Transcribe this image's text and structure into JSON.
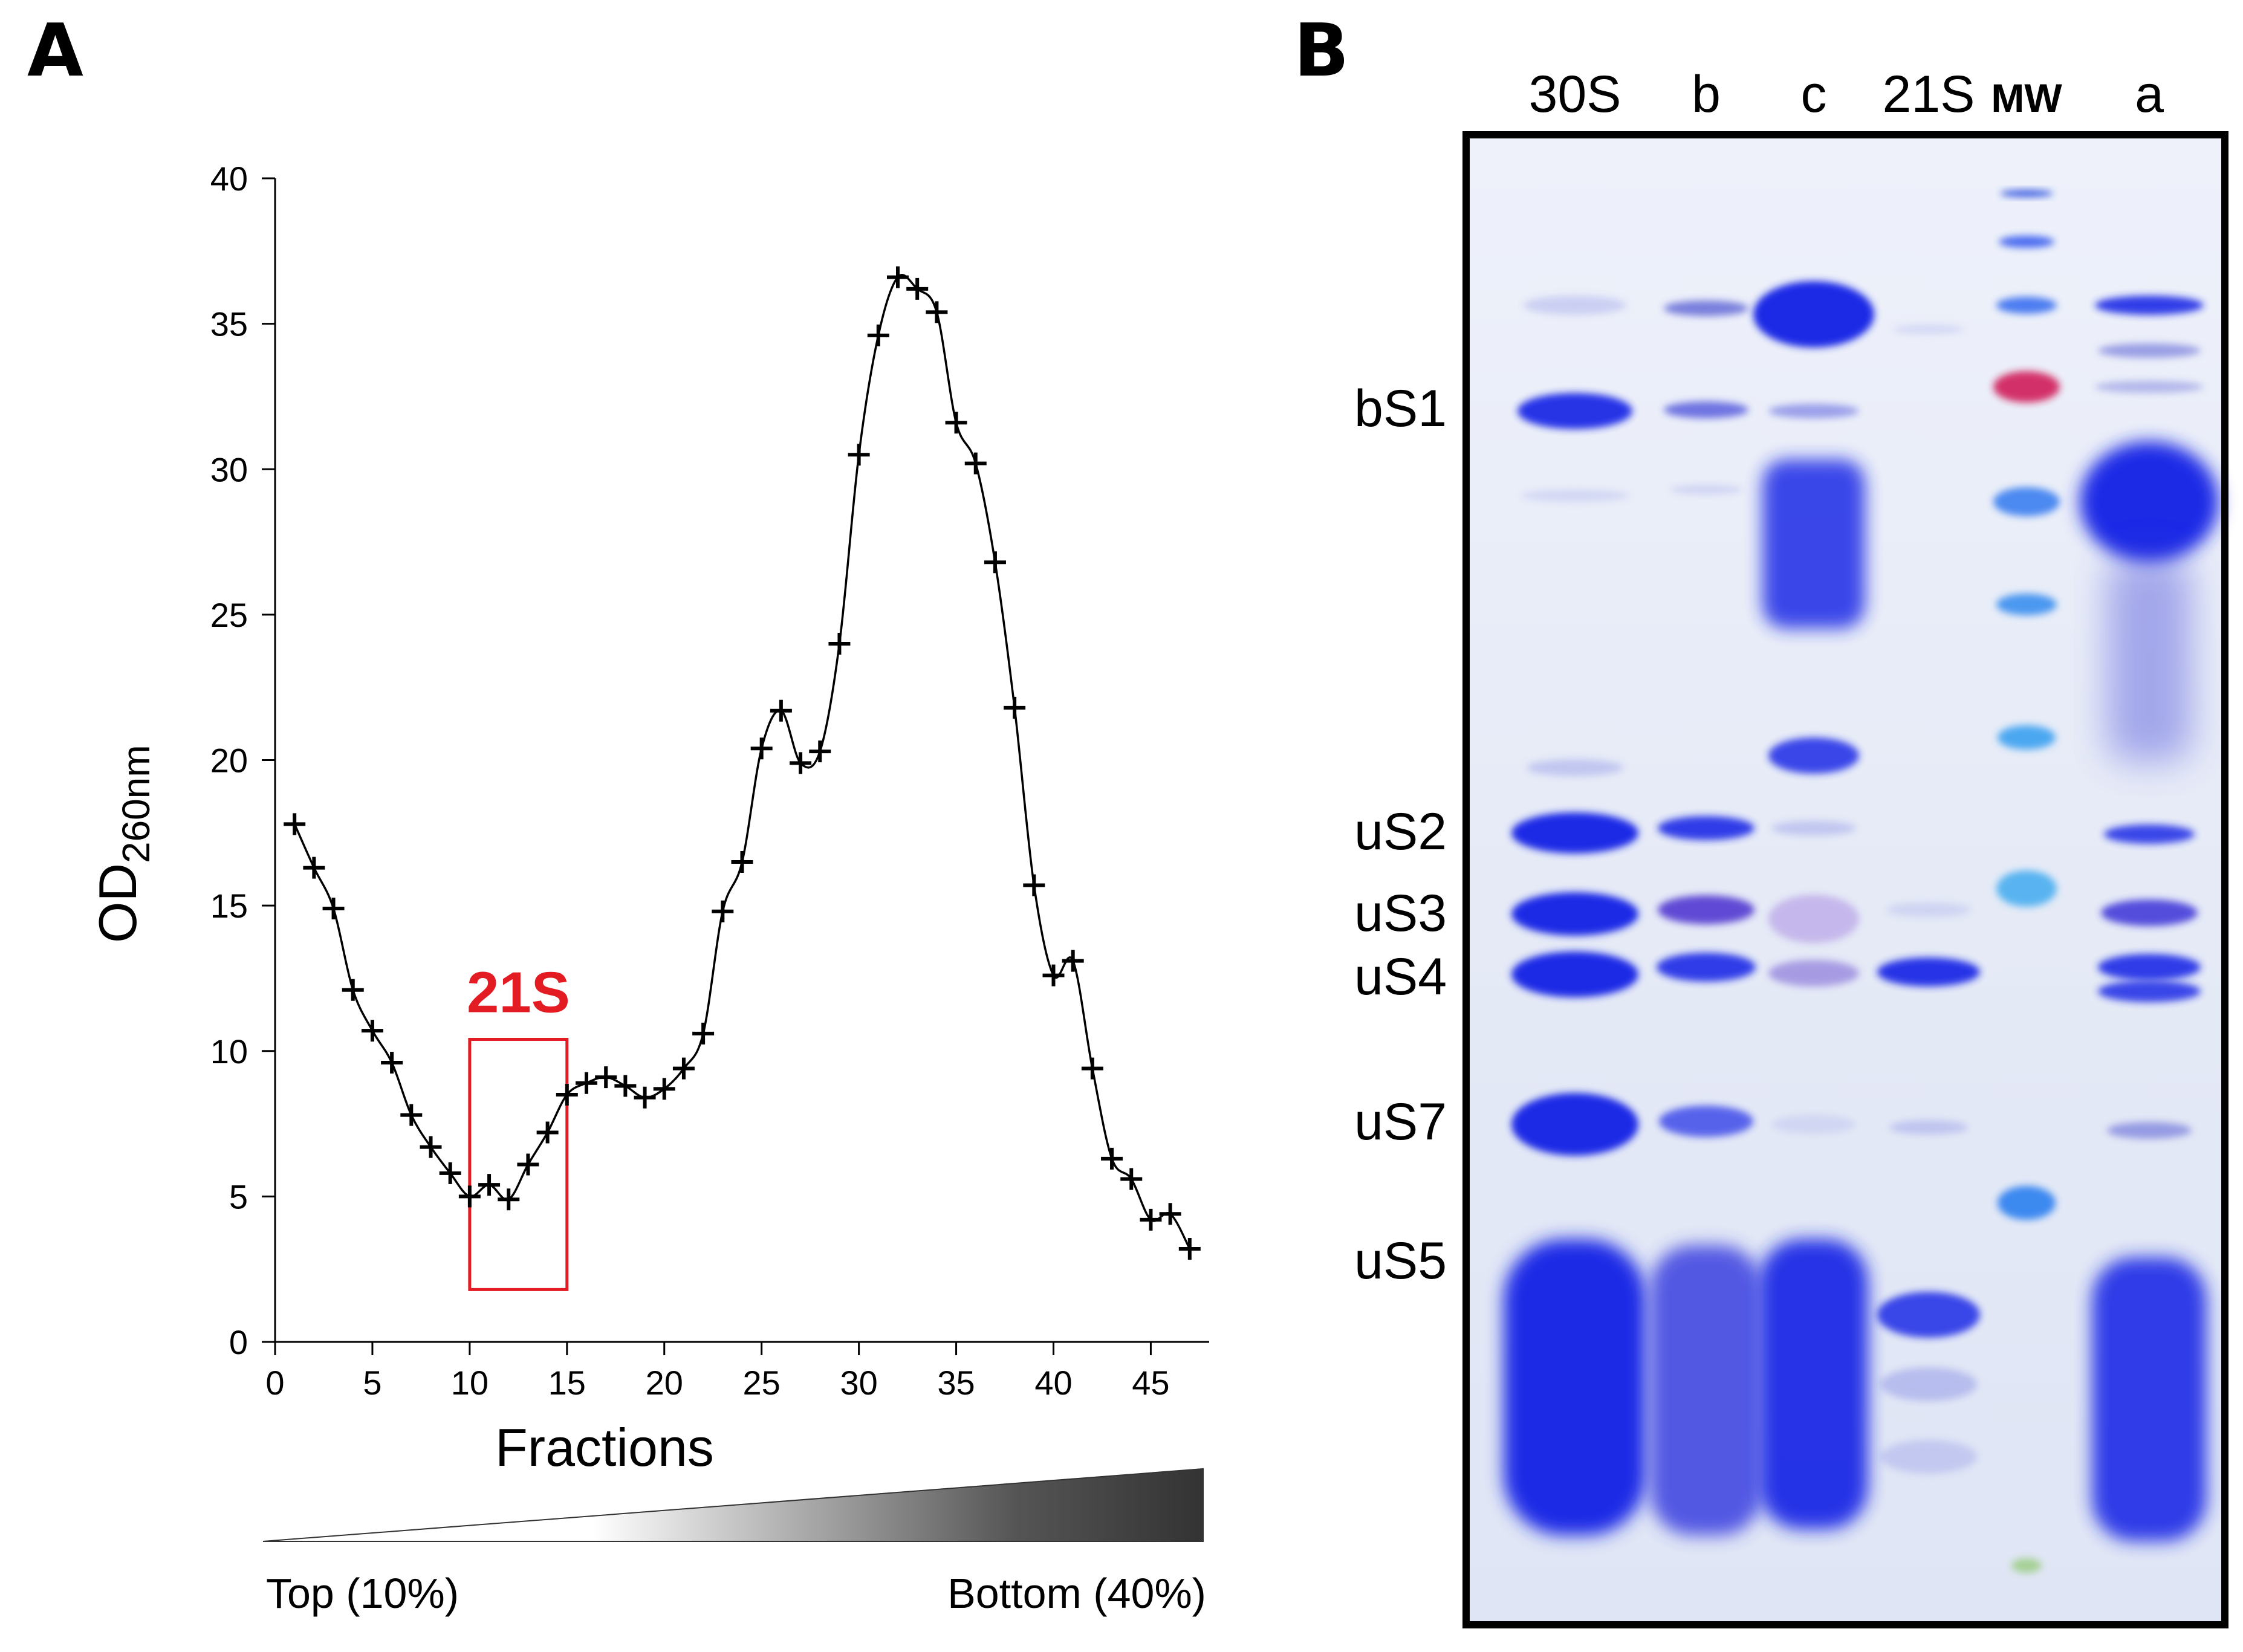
{
  "panels": {
    "a_letter": "A",
    "b_letter": "B"
  },
  "chart_data": {
    "type": "line",
    "title": "",
    "xlabel": "Fractions",
    "ylabel_main": "OD",
    "ylabel_sub": "260nm",
    "xlim": [
      0,
      48
    ],
    "ylim": [
      0,
      40
    ],
    "xticks": [
      0,
      5,
      10,
      15,
      20,
      25,
      30,
      35,
      40,
      45
    ],
    "yticks": [
      0,
      5,
      10,
      15,
      20,
      25,
      30,
      35,
      40
    ],
    "grid": false,
    "series": [
      {
        "name": "OD260nm profile",
        "x": [
          1,
          2,
          3,
          4,
          5,
          6,
          7,
          8,
          9,
          10,
          11,
          12,
          13,
          14,
          15,
          16,
          17,
          18,
          19,
          20,
          21,
          22,
          23,
          24,
          25,
          26,
          27,
          28,
          29,
          30,
          31,
          32,
          33,
          34,
          35,
          36,
          37,
          38,
          39,
          40,
          41,
          42,
          43,
          44,
          45,
          46,
          47
        ],
        "values": [
          17.8,
          16.3,
          14.9,
          12.1,
          10.7,
          9.6,
          7.8,
          6.7,
          5.8,
          5.0,
          5.4,
          4.9,
          6.1,
          7.2,
          8.5,
          8.9,
          9.1,
          8.8,
          8.4,
          8.7,
          9.4,
          10.6,
          14.8,
          16.5,
          20.4,
          21.7,
          19.9,
          20.3,
          24.0,
          30.5,
          34.6,
          36.6,
          36.2,
          35.4,
          31.6,
          30.2,
          26.8,
          21.8,
          15.7,
          12.6,
          13.1,
          9.4,
          6.3,
          5.6,
          4.2,
          4.4,
          3.2
        ]
      }
    ],
    "highlight": {
      "label": "21S",
      "x_range": [
        10,
        15
      ],
      "y_range": [
        1.8,
        10.4
      ],
      "color": "#e31b23"
    },
    "gradient_bar": {
      "left_label": "Top (10%)",
      "right_label": "Bottom (40%)"
    }
  },
  "gel": {
    "lanes": [
      "30S",
      "b",
      "c",
      "21S",
      "MW",
      "a"
    ],
    "band_labels": [
      "bS1",
      "uS2",
      "uS3",
      "uS4",
      "uS7",
      "uS5"
    ],
    "colors": {
      "background": "#e6ebf7",
      "band": "#1f2be6",
      "frame": "#000000"
    }
  }
}
